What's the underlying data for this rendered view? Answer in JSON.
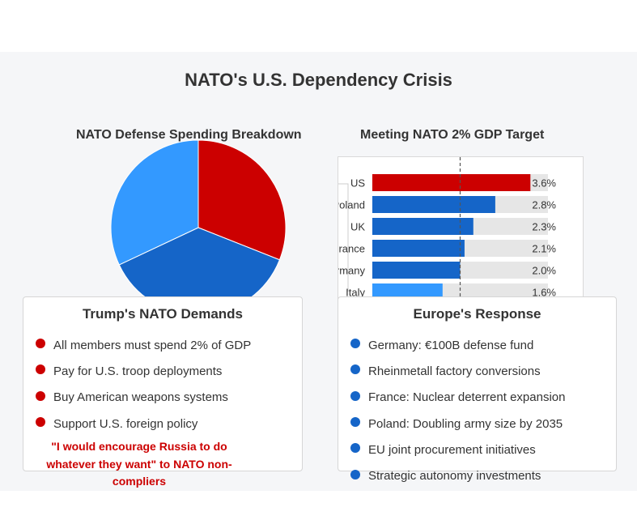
{
  "page": {
    "title": "NATO's U.S. Dependency Crisis"
  },
  "pie": {
    "title": "NATO Defense Spending Breakdown"
  },
  "bars": {
    "title": "Meeting NATO 2% GDP Target"
  },
  "chart_data": [
    {
      "type": "pie",
      "title": "NATO Defense Spending Breakdown",
      "slices": [
        {
          "value": 31,
          "color": "#cc0000"
        },
        {
          "value": 37,
          "color": "#1565c8"
        },
        {
          "value": 32,
          "color": "#3399ff"
        }
      ]
    },
    {
      "type": "bar",
      "orientation": "horizontal",
      "title": "Meeting NATO 2% GDP Target",
      "categories": [
        "US",
        "Poland",
        "UK",
        "France",
        "Germany",
        "Italy"
      ],
      "values": [
        3.6,
        2.8,
        2.3,
        2.1,
        2.0,
        1.6
      ],
      "value_labels": [
        "3.6%",
        "2.8%",
        "2.3%",
        "2.1%",
        "2.0%",
        "1.6%"
      ],
      "colors": [
        "#cc0000",
        "#1565c8",
        "#1565c8",
        "#1565c8",
        "#1565c8",
        "#3399ff"
      ],
      "track_color": "#e6e6e6",
      "xlim": [
        0,
        4
      ],
      "target_line": 2.0
    }
  ],
  "left_card": {
    "title": "Trump's NATO Demands",
    "items": [
      "All members must spend 2% of GDP",
      "Pay for U.S. troop deployments",
      "Buy American weapons systems",
      "Support U.S. foreign policy"
    ],
    "quote": "\"I would encourage Russia to do whatever they want\" to NATO non-compliers"
  },
  "right_card": {
    "title": "Europe's Response",
    "items": [
      "Germany: €100B defense fund",
      "Rheinmetall factory conversions",
      "France: Nuclear deterrent expansion",
      "Poland: Doubling army size by 2035",
      "EU joint procurement initiatives",
      "Strategic autonomy investments"
    ]
  }
}
